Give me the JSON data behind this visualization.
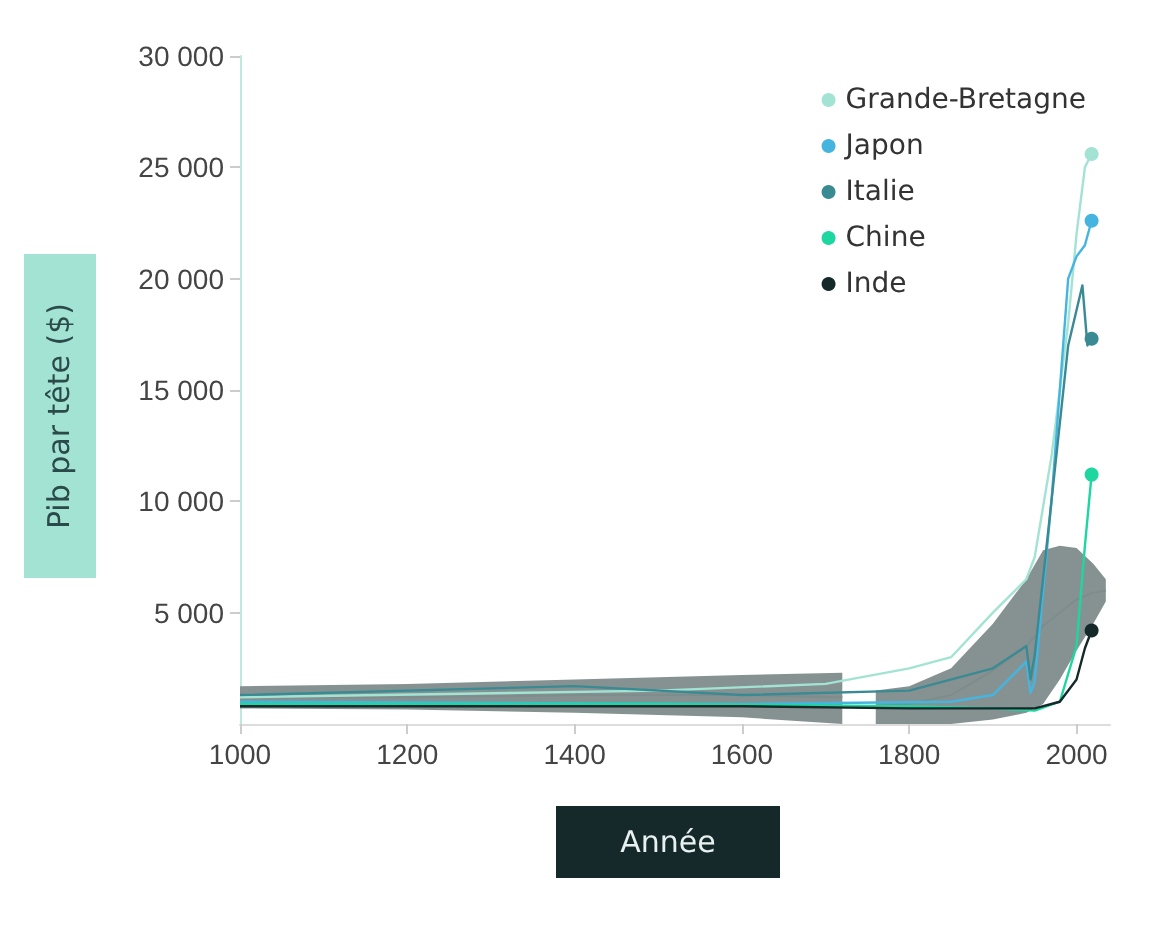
{
  "chart_data": {
    "type": "line",
    "xlabel": "Année",
    "ylabel": "Pib par tête ($)",
    "xlim": [
      1000,
      2040
    ],
    "ylim": [
      0,
      30000
    ],
    "xticks": [
      1000,
      1200,
      1400,
      1600,
      1800,
      2000
    ],
    "yticks": [
      {
        "value": 5000,
        "label": "5 000"
      },
      {
        "value": 10000,
        "label": "10 000"
      },
      {
        "value": 15000,
        "label": "15 000"
      },
      {
        "value": 20000,
        "label": "20 000"
      },
      {
        "value": 25000,
        "label": "25 000"
      },
      {
        "value": 30000,
        "label": "30 000"
      }
    ],
    "grid": false,
    "legend": "top right",
    "series": [
      {
        "color": "#7f8c8c",
        "x": [
          1000,
          1200,
          1400,
          1600,
          1720,
          1725,
          1760,
          1800,
          1850,
          1900,
          1940,
          1960,
          1980,
          2000,
          2020,
          2035
        ],
        "values": [
          1200,
          1200,
          1300,
          1300,
          1200,
          null,
          800,
          900,
          1300,
          2400,
          3500,
          4400,
          5000,
          5600,
          5900,
          6000
        ],
        "lower": [
          700,
          650,
          500,
          300,
          0,
          null,
          0,
          0,
          0,
          200,
          500,
          900,
          2000,
          3300,
          4500,
          5500
        ],
        "upper": [
          1700,
          1800,
          2000,
          2200,
          2300,
          null,
          1500,
          1700,
          2500,
          4500,
          6500,
          7800,
          8000,
          7900,
          7200,
          6500
        ]
      },
      {
        "name": "Grande-Bretagne",
        "color": "#a3e3d3",
        "x": [
          1000,
          1500,
          1700,
          1800,
          1850,
          1900,
          1940,
          1950,
          1970,
          1990,
          2000,
          2010,
          2018
        ],
        "values": [
          1200,
          1500,
          1800,
          2500,
          3000,
          5000,
          6500,
          7500,
          12000,
          18000,
          22000,
          25000,
          25600
        ]
      },
      {
        "name": "Japon",
        "color": "#45b5e0",
        "x": [
          1000,
          1600,
          1850,
          1900,
          1940,
          1945,
          1950,
          1970,
          1990,
          2000,
          2010,
          2018
        ],
        "values": [
          1000,
          900,
          1000,
          1300,
          2800,
          1400,
          1900,
          10000,
          20000,
          21000,
          21500,
          22600
        ]
      },
      {
        "name": "Italie",
        "color": "#3a8a94",
        "x": [
          1000,
          1400,
          1600,
          1800,
          1900,
          1940,
          1945,
          1950,
          1970,
          1990,
          2007,
          2013,
          2018
        ],
        "values": [
          1300,
          1700,
          1300,
          1500,
          2500,
          3500,
          2000,
          3100,
          10000,
          17000,
          19700,
          17000,
          17300
        ]
      },
      {
        "name": "Chine",
        "color": "#1ed6a0",
        "x": [
          1000,
          1500,
          1800,
          1900,
          1950,
          1980,
          2000,
          2010,
          2018
        ],
        "values": [
          900,
          900,
          800,
          700,
          600,
          1000,
          3500,
          8000,
          11200
        ]
      },
      {
        "name": "Inde",
        "color": "#15292b",
        "x": [
          1000,
          1600,
          1800,
          1900,
          1950,
          1980,
          2000,
          2010,
          2018
        ],
        "values": [
          800,
          800,
          700,
          700,
          700,
          1000,
          2000,
          3400,
          4200
        ]
      }
    ]
  }
}
